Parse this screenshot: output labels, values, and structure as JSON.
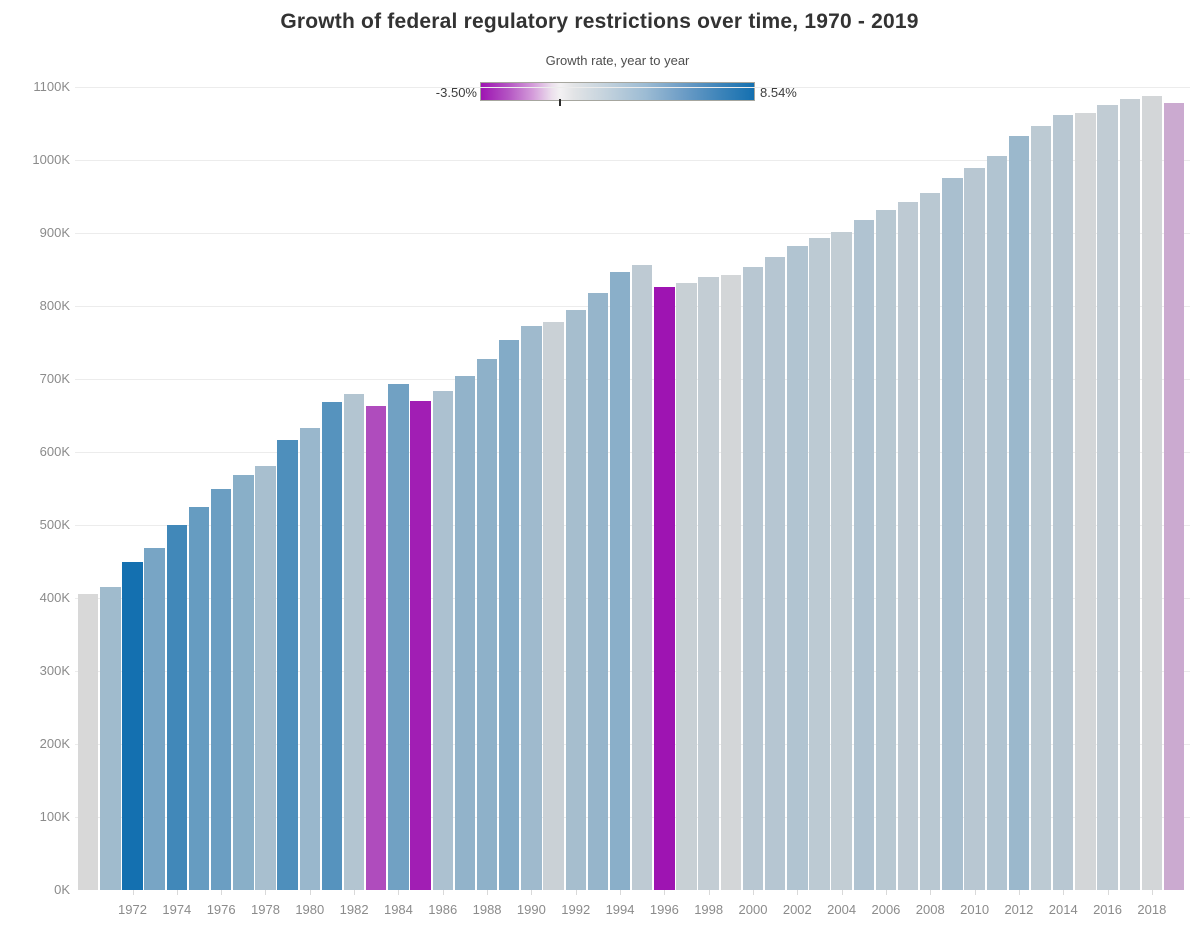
{
  "title": "Growth of federal regulatory restrictions over time, 1970 - 2019",
  "legend": {
    "title": "Growth rate, year to year",
    "min_label": "-3.50%",
    "max_label": "8.54%",
    "min_value_pct": -3.5,
    "max_value_pct": 8.54,
    "zero_tick_position_fraction": 0.291
  },
  "colors": {
    "negative_end": "#9e14b2",
    "neutral": "#d9d9d9",
    "positive_end": "#1470b0",
    "no_data_bar": "#d8d8d8",
    "gridline": "#ececec",
    "axis_label": "#8b8b8b",
    "title_text": "#333333"
  },
  "y_axis": {
    "tick_labels": [
      "0K",
      "100K",
      "200K",
      "300K",
      "400K",
      "500K",
      "600K",
      "700K",
      "800K",
      "900K",
      "1000K",
      "1100K"
    ],
    "max_value_thousands": 1100
  },
  "x_axis": {
    "labeled_years": [
      1972,
      1974,
      1976,
      1978,
      1980,
      1982,
      1984,
      1986,
      1988,
      1990,
      1992,
      1994,
      1996,
      1998,
      2000,
      2002,
      2004,
      2006,
      2008,
      2010,
      2012,
      2014,
      2016,
      2018
    ]
  },
  "chart_data": {
    "type": "bar",
    "title": "Growth of federal regulatory restrictions over time, 1970 - 2019",
    "xlabel": "",
    "ylabel": "",
    "ylim_thousands": [
      0,
      1100
    ],
    "grid": "horizontal",
    "legend_position": "top-center",
    "color_encoding": "growth rate year to year, diverging magenta (-3.50%) to blue (8.54%)",
    "x": [
      1970,
      1971,
      1972,
      1973,
      1974,
      1975,
      1976,
      1977,
      1978,
      1979,
      1980,
      1981,
      1982,
      1983,
      1984,
      1985,
      1986,
      1987,
      1988,
      1989,
      1990,
      1991,
      1992,
      1993,
      1994,
      1995,
      1996,
      1997,
      1998,
      1999,
      2000,
      2001,
      2002,
      2003,
      2004,
      2005,
      2006,
      2007,
      2008,
      2009,
      2010,
      2011,
      2012,
      2013,
      2014,
      2015,
      2016,
      2017,
      2018,
      2019
    ],
    "values_thousands": [
      405,
      415,
      450,
      469,
      500,
      525,
      550,
      569,
      581,
      616,
      633,
      669,
      680,
      663,
      693,
      670,
      683,
      704,
      727,
      754,
      773,
      778,
      795,
      818,
      846,
      856,
      826,
      832,
      840,
      842,
      854,
      867,
      882,
      893,
      902,
      918,
      931,
      942,
      955,
      975,
      989,
      1006,
      1033,
      1046,
      1061,
      1064,
      1075,
      1084,
      1087,
      1078
    ],
    "growth_rate_pct_year_over_year": [
      null,
      2.47,
      8.54,
      4.22,
      6.61,
      5.0,
      4.76,
      3.45,
      2.11,
      6.02,
      2.76,
      5.69,
      1.64,
      -2.5,
      4.52,
      -3.32,
      1.94,
      3.07,
      3.27,
      3.71,
      2.52,
      0.65,
      2.19,
      2.89,
      3.42,
      1.18,
      -3.5,
      0.73,
      0.96,
      0.24,
      1.43,
      1.52,
      1.73,
      1.25,
      1.01,
      1.77,
      1.42,
      1.18,
      1.38,
      2.09,
      1.44,
      1.72,
      2.68,
      1.26,
      1.43,
      0.28,
      1.03,
      0.84,
      0.28,
      -0.83
    ],
    "growth_rate_domain_pct": [
      -3.5,
      8.54
    ]
  }
}
